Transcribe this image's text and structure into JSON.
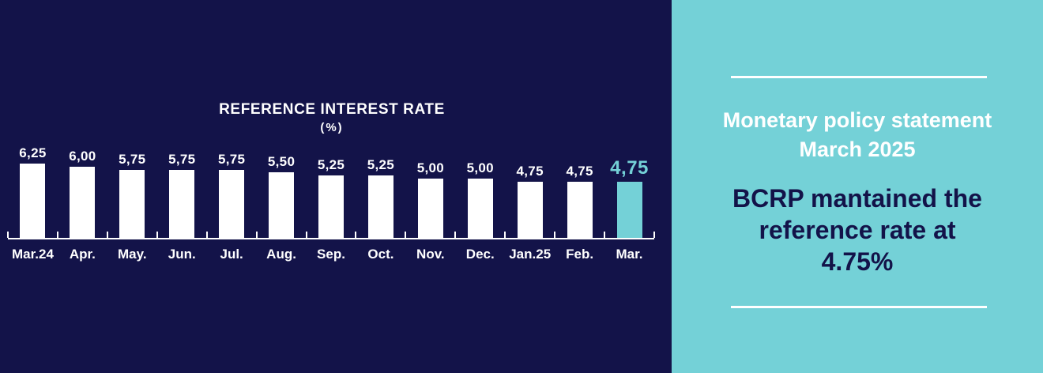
{
  "chart_data": {
    "type": "bar",
    "title": "REFERENCE INTEREST RATE",
    "subtitle": "(%)",
    "categories": [
      "Mar.24",
      "Apr.",
      "May.",
      "Jun.",
      "Jul.",
      "Aug.",
      "Sep.",
      "Oct.",
      "Nov.",
      "Dec.",
      "Jan.25",
      "Feb.",
      "Mar."
    ],
    "values": [
      6.25,
      6.0,
      5.75,
      5.75,
      5.75,
      5.5,
      5.25,
      5.25,
      5.0,
      5.0,
      4.75,
      4.75,
      4.75
    ],
    "value_labels": [
      "6,25",
      "6,00",
      "5,75",
      "5,75",
      "5,75",
      "5,50",
      "5,25",
      "5,25",
      "5,00",
      "5,00",
      "4,75",
      "4,75",
      "4,75"
    ],
    "ylim": [
      0,
      6.5
    ],
    "grid": false,
    "legend": false,
    "bar_color": "#ffffff",
    "highlight_index": 12,
    "highlight_color": "#74d1d7",
    "axis_color": "#ffffff",
    "label_color": "#ffffff",
    "background_color": "#131349"
  },
  "side_panel": {
    "background_color": "#74d1d7",
    "heading_line1": "Monetary policy statement",
    "heading_line2": "March 2025",
    "statement_line1": "BCRP mantained the",
    "statement_line2": "reference rate at",
    "statement_line3": "4.75%",
    "heading_color": "#ffffff",
    "statement_color": "#131349"
  }
}
